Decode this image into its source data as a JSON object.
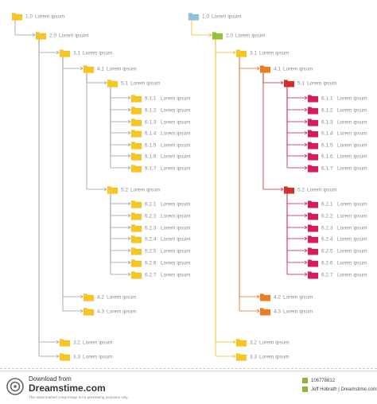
{
  "colors": {
    "connector_left": "#9a9a9a",
    "connector_right_main": "#f0b429",
    "connector_right_l4": "#e06b1f",
    "connector_right_l5": "#c0272d",
    "connector_right_l6": "#c2185b",
    "folder_yellow": "#f7c623",
    "folder_blue": "#8ec1e3",
    "folder_green": "#8cc63f",
    "folder_orange": "#ec7d25",
    "folder_red": "#d32f2f",
    "folder_magenta": "#d81b60",
    "text": "#8a8a8a"
  },
  "tree": {
    "num": "1.0",
    "label": "Lorem ipsum",
    "children": [
      {
        "num": "2.0",
        "label": "Lorem ipsum",
        "children": [
          {
            "num": "3.1",
            "label": "Lorem ipsum",
            "children": [
              {
                "num": "4.1",
                "label": "Lorem ipsum",
                "children": [
                  {
                    "num": "5.1",
                    "label": "Lorem ipsum",
                    "children": [
                      {
                        "num": "6.1.1",
                        "label": "Lorem ipsum",
                        "children": []
                      },
                      {
                        "num": "6.1.2",
                        "label": "Lorem ipsum",
                        "children": []
                      },
                      {
                        "num": "6.1.3",
                        "label": "Lorem ipsum",
                        "children": []
                      },
                      {
                        "num": "6.1.4",
                        "label": "Lorem ipsum",
                        "children": []
                      },
                      {
                        "num": "6.1.5",
                        "label": "Lorem ipsum",
                        "children": []
                      },
                      {
                        "num": "6.1.6",
                        "label": "Lorem ipsum",
                        "children": []
                      },
                      {
                        "num": "6.1.7",
                        "label": "Lorem ipsum",
                        "children": []
                      }
                    ]
                  },
                  {
                    "num": "5.2",
                    "label": "Lorem ipsum",
                    "children": [
                      {
                        "num": "6.2.1",
                        "label": "Lorem ipsum",
                        "children": []
                      },
                      {
                        "num": "6.2.2",
                        "label": "Lorem ipsum",
                        "children": []
                      },
                      {
                        "num": "6.2.3",
                        "label": "Lorem ipsum",
                        "children": []
                      },
                      {
                        "num": "6.2.4",
                        "label": "Lorem ipsum",
                        "children": []
                      },
                      {
                        "num": "6.2.5",
                        "label": "Lorem ipsum",
                        "children": []
                      },
                      {
                        "num": "6.2.6",
                        "label": "Lorem ipsum",
                        "children": []
                      },
                      {
                        "num": "6.2.7",
                        "label": "Lorem ipsum",
                        "children": []
                      }
                    ]
                  }
                ]
              },
              {
                "num": "4.2",
                "label": "Lorem ipsum",
                "children": []
              },
              {
                "num": "4.3",
                "label": "Lorem ipsum",
                "children": []
              }
            ]
          },
          {
            "num": "3.2",
            "label": "Lorem ipsum",
            "children": []
          },
          {
            "num": "3.3",
            "label": "Lorem ipsum",
            "children": []
          }
        ]
      }
    ]
  },
  "footer": {
    "download_from": "Download from",
    "brand": "Dreamstime.com",
    "note": "This watermarked comp image is for previewing purposes only.",
    "image_id": "106778812",
    "author": "Jeff Hobrath | Dreamstime.com"
  }
}
